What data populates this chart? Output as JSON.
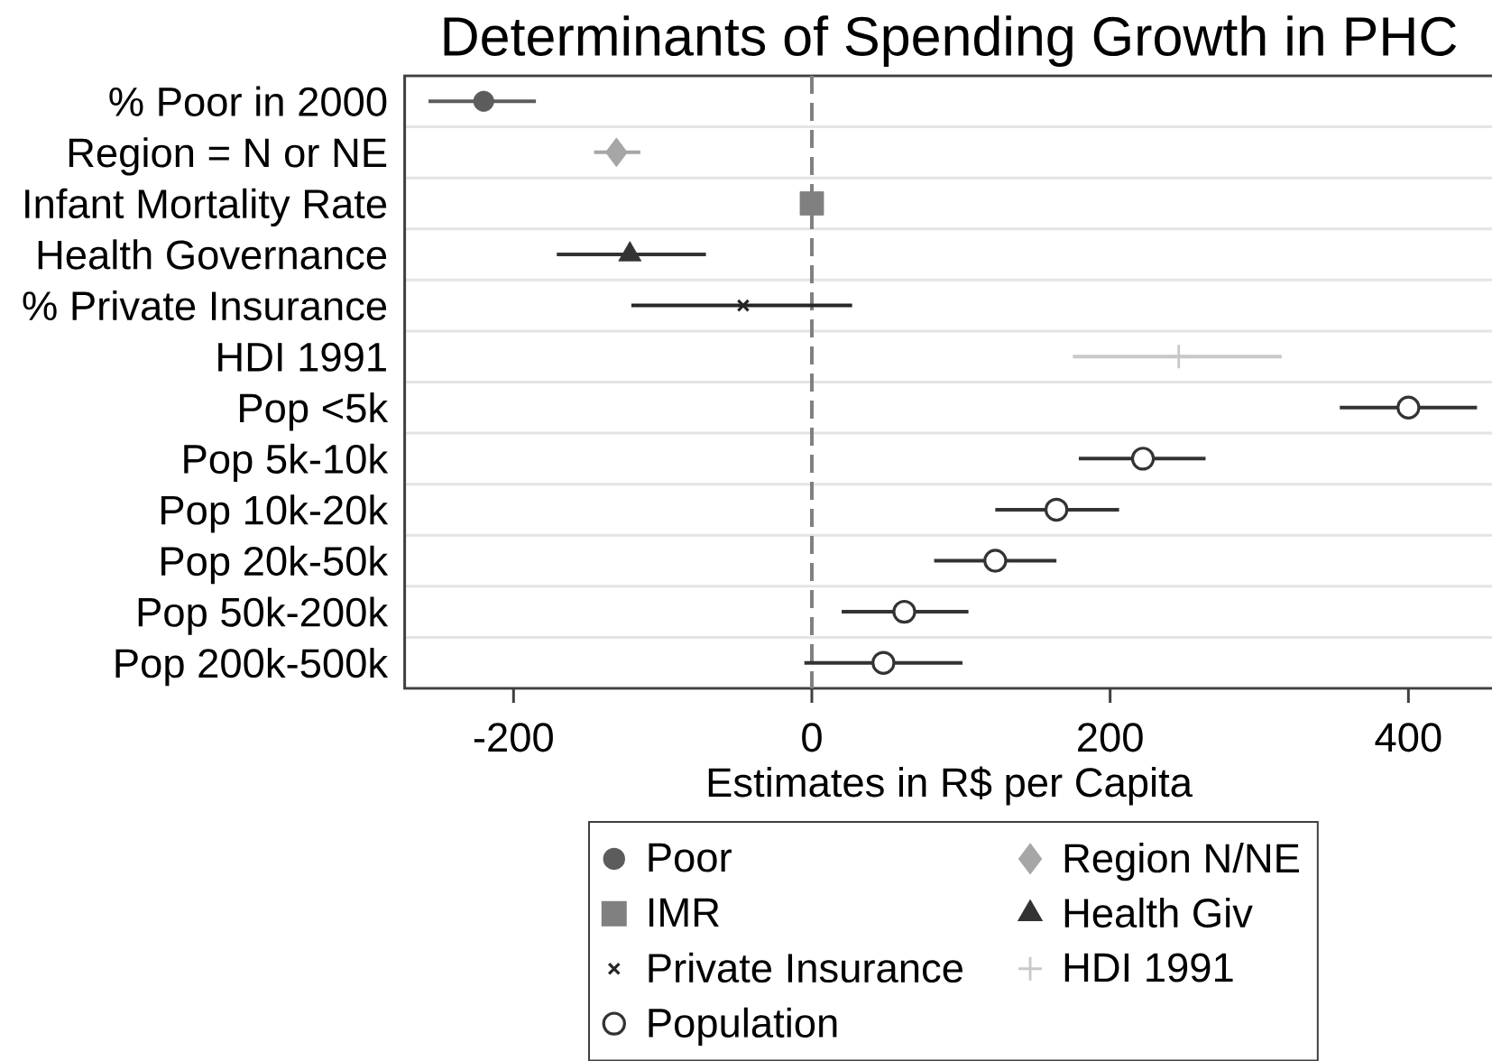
{
  "chart_data": {
    "type": "scatter",
    "orientation": "horizontal",
    "title": "Determinants of Spending Growth in PHC",
    "xlabel": "Estimates in R$ per Capita",
    "categories": [
      "% Poor in 2000",
      "Region = N or NE",
      "Infant Mortality Rate",
      "Health Governance",
      "% Private Insurance",
      "HDI 1991",
      "Pop <5k",
      "Pop 5k-10k",
      "Pop 10k-20k",
      "Pop 20k-50k",
      "Pop 50k-200k",
      "Pop 200k-500k"
    ],
    "xlim": [
      -273,
      457
    ],
    "xticks": [
      -200,
      0,
      200,
      400
    ],
    "grid": "y",
    "legend": "bottom",
    "ref_lines": [
      {
        "axis": "x",
        "value": 0,
        "color": "#808080",
        "line_style": "dashed"
      }
    ],
    "series": [
      {
        "name": "Poor",
        "color": "#5c5c5c",
        "marker": "circle",
        "values": [
          -220,
          null,
          null,
          null,
          null,
          null,
          null,
          null,
          null,
          null,
          null,
          null
        ],
        "errors": [
          [
            -257,
            -185
          ],
          null,
          null,
          null,
          null,
          null,
          null,
          null,
          null,
          null,
          null,
          null
        ]
      },
      {
        "name": "Region N/NE",
        "color": "#a6a6a6",
        "marker": "diamond",
        "values": [
          null,
          -131,
          null,
          null,
          null,
          null,
          null,
          null,
          null,
          null,
          null,
          null
        ],
        "errors": [
          null,
          [
            -146,
            -115
          ],
          null,
          null,
          null,
          null,
          null,
          null,
          null,
          null,
          null,
          null
        ]
      },
      {
        "name": "IMR",
        "color": "#808080",
        "marker": "square",
        "values": [
          null,
          null,
          0,
          null,
          null,
          null,
          null,
          null,
          null,
          null,
          null,
          null
        ]
      },
      {
        "name": "Health Giv",
        "color": "#333333",
        "marker": "triangle",
        "values": [
          null,
          null,
          null,
          -122,
          null,
          null,
          null,
          null,
          null,
          null,
          null,
          null
        ],
        "errors": [
          null,
          null,
          null,
          [
            -171,
            -71
          ],
          null,
          null,
          null,
          null,
          null,
          null,
          null,
          null
        ]
      },
      {
        "name": "Private Insurance",
        "color": "#262626",
        "marker": "x",
        "values": [
          null,
          null,
          null,
          null,
          -46,
          null,
          null,
          null,
          null,
          null,
          null,
          null
        ],
        "errors": [
          null,
          null,
          null,
          null,
          [
            -121,
            27
          ],
          null,
          null,
          null,
          null,
          null,
          null,
          null
        ]
      },
      {
        "name": "HDI 1991",
        "color": "#c8c8c8",
        "marker": "cross",
        "values": [
          null,
          null,
          null,
          null,
          null,
          246,
          null,
          null,
          null,
          null,
          null,
          null
        ],
        "errors": [
          null,
          null,
          null,
          null,
          null,
          [
            175,
            315
          ],
          null,
          null,
          null,
          null,
          null,
          null
        ]
      },
      {
        "name": "Population",
        "color": "#333333",
        "marker": "circle-open",
        "values": [
          null,
          null,
          null,
          null,
          null,
          null,
          400,
          222,
          164,
          123,
          62,
          48
        ],
        "errors": [
          null,
          null,
          null,
          null,
          null,
          null,
          [
            354,
            446
          ],
          [
            179,
            264
          ],
          [
            123,
            206
          ],
          [
            82,
            164
          ],
          [
            20,
            105
          ],
          [
            -5,
            101
          ]
        ]
      }
    ]
  }
}
